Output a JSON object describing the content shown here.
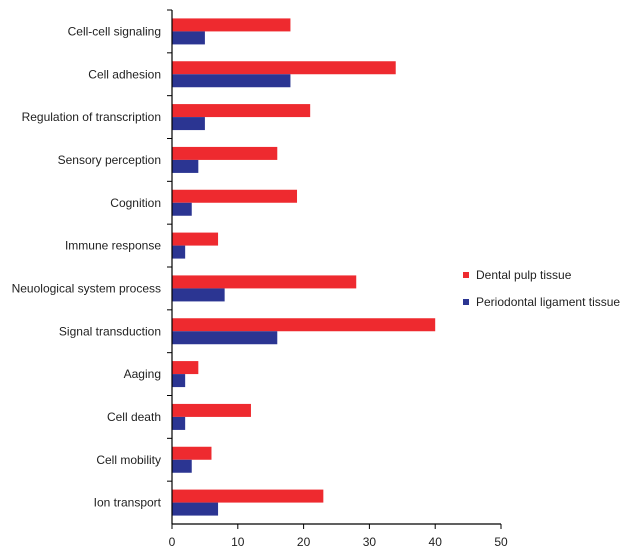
{
  "chart_data": {
    "type": "bar",
    "orientation": "horizontal",
    "categories": [
      "Cell-cell signaling",
      "Cell adhesion",
      "Regulation of transcription",
      "Sensory perception",
      "Cognition",
      "Immune response",
      "Neuological system process",
      "Signal transduction",
      "Aaging",
      "Cell death",
      "Cell mobility",
      "Ion transport"
    ],
    "series": [
      {
        "name": "Dental pulp tissue",
        "color": "#ee2a2f",
        "values": [
          18,
          34,
          21,
          16,
          19,
          7,
          28,
          40,
          4,
          12,
          6,
          23
        ]
      },
      {
        "name": "Periodontal ligament tissue",
        "color": "#2b3592",
        "values": [
          5,
          18,
          5,
          4,
          3,
          2,
          8,
          16,
          2,
          2,
          3,
          7
        ]
      }
    ],
    "xlim": [
      0,
      50
    ],
    "xticks": [
      "0",
      "10",
      "20",
      "30",
      "40",
      "50"
    ],
    "grid": false,
    "legend_position": "right"
  }
}
